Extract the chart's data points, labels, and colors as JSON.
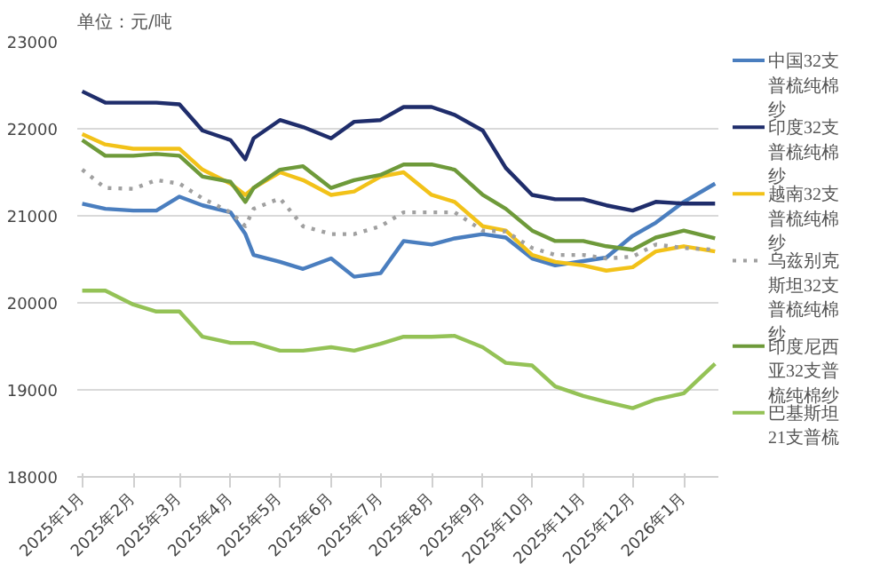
{
  "chart_data": {
    "type": "line",
    "ylabel": "单位：元/吨",
    "x": [
      "2025-01-01",
      "2025-01-15",
      "2025-02-01",
      "2025-02-15",
      "2025-03-01",
      "2025-03-15",
      "2025-04-01",
      "2025-04-10",
      "2025-04-15",
      "2025-05-01",
      "2025-05-15",
      "2025-06-01",
      "2025-06-15",
      "2025-07-01",
      "2025-07-15",
      "2025-08-01",
      "2025-08-15",
      "2025-09-01",
      "2025-09-15",
      "2025-10-01",
      "2025-10-15",
      "2025-11-01",
      "2025-11-15",
      "2025-12-01",
      "2025-12-15",
      "2026-01-01",
      "2026-01-20"
    ],
    "series": [
      {
        "name": "中国32支普梳纯棉纱",
        "color": "#4a7ebf",
        "values": [
          21140,
          21080,
          21060,
          21060,
          21220,
          21120,
          21040,
          20790,
          20550,
          20470,
          20390,
          20510,
          20300,
          20340,
          20710,
          20670,
          20740,
          20790,
          20750,
          20510,
          20430,
          20480,
          20520,
          20770,
          20920,
          21160,
          21370
        ]
      },
      {
        "name": "印度32支普梳纯棉纱",
        "color": "#1f2d6b",
        "values": [
          22430,
          22300,
          22300,
          22300,
          22280,
          21980,
          21870,
          21650,
          21890,
          22100,
          22020,
          21890,
          22080,
          22100,
          22250,
          22250,
          22160,
          21980,
          21550,
          21240,
          21190,
          21190,
          21120,
          21060,
          21160,
          21140,
          21140
        ]
      },
      {
        "name": "越南32支普梳纯棉纱",
        "color": "#f2c219",
        "values": [
          21940,
          21820,
          21770,
          21770,
          21770,
          21530,
          21370,
          21240,
          21320,
          21500,
          21410,
          21240,
          21280,
          21450,
          21500,
          21240,
          21160,
          20880,
          20830,
          20550,
          20470,
          20430,
          20370,
          20410,
          20590,
          20650,
          20590
        ]
      },
      {
        "name": "乌兹别克斯坦32支普梳纯棉纱",
        "color": "#a0a0a0",
        "line_style": "dotted",
        "values": [
          21530,
          21320,
          21310,
          21410,
          21370,
          21200,
          21040,
          20880,
          21080,
          21200,
          20880,
          20790,
          20790,
          20880,
          21040,
          21040,
          21040,
          20830,
          20820,
          20630,
          20550,
          20550,
          20510,
          20530,
          20670,
          20630,
          20610
        ]
      },
      {
        "name": "印度尼西亚32支普梳纯棉纱",
        "color": "#6e9a3a",
        "values": [
          21870,
          21690,
          21690,
          21710,
          21690,
          21450,
          21390,
          21160,
          21320,
          21530,
          21570,
          21320,
          21410,
          21470,
          21590,
          21590,
          21530,
          21240,
          21080,
          20830,
          20710,
          20710,
          20650,
          20610,
          20750,
          20830,
          20740
        ]
      },
      {
        "name": "巴基斯坦21支普梳",
        "color": "#94c256",
        "values": [
          20140,
          20140,
          19980,
          19900,
          19900,
          19610,
          19540,
          19540,
          19540,
          19450,
          19450,
          19490,
          19450,
          19530,
          19610,
          19610,
          19620,
          19490,
          19310,
          19280,
          19040,
          18930,
          18860,
          18790,
          18890,
          18960,
          19300
        ]
      }
    ],
    "xlim": [
      "2024-12-29",
      "2026-01-22"
    ],
    "xticks": [
      {
        "value": "2025-01-01",
        "label": "2025年1月"
      },
      {
        "value": "2025-02-01",
        "label": "2025年2月"
      },
      {
        "value": "2025-03-01",
        "label": "2025年3月"
      },
      {
        "value": "2025-04-01",
        "label": "2025年4月"
      },
      {
        "value": "2025-05-01",
        "label": "2025年5月"
      },
      {
        "value": "2025-06-01",
        "label": "2025年6月"
      },
      {
        "value": "2025-07-01",
        "label": "2025年7月"
      },
      {
        "value": "2025-08-01",
        "label": "2025年8月"
      },
      {
        "value": "2025-09-01",
        "label": "2025年9月"
      },
      {
        "value": "2025-10-01",
        "label": "2025年10月"
      },
      {
        "value": "2025-11-01",
        "label": "2025年11月"
      },
      {
        "value": "2025-12-01",
        "label": "2025年12月"
      },
      {
        "value": "2026-01-01",
        "label": "2026年1月"
      }
    ],
    "ylim": [
      18000,
      23000
    ],
    "yticks": [
      18000,
      19000,
      20000,
      21000,
      22000,
      23000
    ],
    "grid": "y",
    "legend": "right",
    "line_style": "solid"
  }
}
